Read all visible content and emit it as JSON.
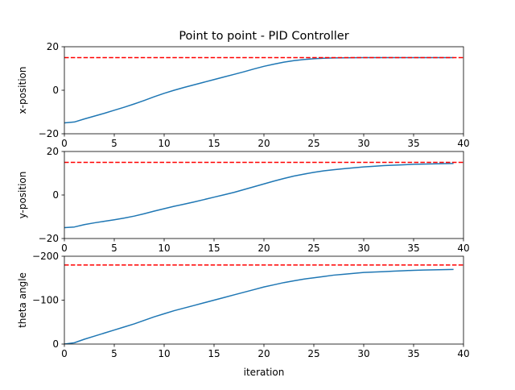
{
  "chart_data": [
    {
      "type": "line",
      "title": "Point to point - PID Controller",
      "xlabel": "",
      "ylabel": "x-position",
      "xlim": [
        0,
        40
      ],
      "ylim": [
        -20,
        20
      ],
      "xticks": [
        0,
        5,
        10,
        15,
        20,
        25,
        30,
        35,
        40
      ],
      "yticks": [
        -20,
        0,
        20
      ],
      "ytick_labels": [
        "−20",
        "0",
        "20"
      ],
      "grid": false,
      "series": [
        {
          "color": "#1f77b4",
          "style": "solid",
          "x": [
            0,
            1,
            2,
            3,
            4,
            5,
            6,
            7,
            8,
            9,
            10,
            11,
            12,
            13,
            14,
            15,
            16,
            17,
            18,
            19,
            20,
            21,
            22,
            23,
            24,
            25,
            26,
            27,
            28,
            29,
            30,
            31,
            32,
            33,
            34,
            35,
            36,
            37,
            38,
            39
          ],
          "y": [
            -15,
            -14.6,
            -13.2,
            -11.9,
            -10.6,
            -9.2,
            -7.8,
            -6.3,
            -4.7,
            -3.0,
            -1.4,
            0.0,
            1.3,
            2.5,
            3.7,
            4.9,
            6.1,
            7.3,
            8.5,
            9.8,
            11.0,
            12.0,
            12.9,
            13.6,
            14.1,
            14.5,
            14.7,
            14.85,
            14.92,
            14.96,
            14.98,
            14.99,
            15.0,
            15.0,
            15.0,
            15.0,
            15.0,
            15.0,
            15.0,
            15.0
          ]
        },
        {
          "color": "#ff0000",
          "style": "dashed",
          "x": [
            0,
            40
          ],
          "y": [
            15,
            15
          ]
        }
      ]
    },
    {
      "type": "line",
      "title": "",
      "xlabel": "",
      "ylabel": "y-position",
      "xlim": [
        0,
        40
      ],
      "ylim": [
        -20,
        20
      ],
      "xticks": [
        0,
        5,
        10,
        15,
        20,
        25,
        30,
        35,
        40
      ],
      "yticks": [
        -20,
        0,
        20
      ],
      "ytick_labels": [
        "−20",
        "0",
        "20"
      ],
      "grid": false,
      "series": [
        {
          "color": "#1f77b4",
          "style": "solid",
          "x": [
            0,
            1,
            2,
            3,
            4,
            5,
            6,
            7,
            8,
            9,
            10,
            11,
            12,
            13,
            14,
            15,
            16,
            17,
            18,
            19,
            20,
            21,
            22,
            23,
            24,
            25,
            26,
            27,
            28,
            29,
            30,
            31,
            32,
            33,
            34,
            35,
            36,
            37,
            38,
            39
          ],
          "y": [
            -15,
            -14.7,
            -13.6,
            -12.8,
            -12.1,
            -11.4,
            -10.6,
            -9.7,
            -8.6,
            -7.4,
            -6.3,
            -5.2,
            -4.2,
            -3.2,
            -2.1,
            -1.0,
            0.1,
            1.2,
            2.5,
            3.8,
            5.1,
            6.4,
            7.6,
            8.7,
            9.6,
            10.4,
            11.1,
            11.6,
            12.1,
            12.5,
            12.9,
            13.2,
            13.5,
            13.7,
            13.9,
            14.1,
            14.2,
            14.3,
            14.4,
            14.5
          ]
        },
        {
          "color": "#ff0000",
          "style": "dashed",
          "x": [
            0,
            40
          ],
          "y": [
            15,
            15
          ]
        }
      ]
    },
    {
      "type": "line",
      "title": "",
      "xlabel": "iteration",
      "ylabel": "theta angle",
      "xlim": [
        0,
        40
      ],
      "ylim": [
        0,
        -200
      ],
      "xticks": [
        0,
        5,
        10,
        15,
        20,
        25,
        30,
        35,
        40
      ],
      "yticks": [
        0,
        -100,
        -200
      ],
      "ytick_labels": [
        "0",
        "−100",
        "−200"
      ],
      "grid": false,
      "series": [
        {
          "color": "#1f77b4",
          "style": "solid",
          "x": [
            0,
            1,
            2,
            3,
            4,
            5,
            6,
            7,
            8,
            9,
            10,
            11,
            12,
            13,
            14,
            15,
            16,
            17,
            18,
            19,
            20,
            21,
            22,
            23,
            24,
            25,
            26,
            27,
            28,
            29,
            30,
            31,
            32,
            33,
            34,
            35,
            36,
            37,
            38,
            39
          ],
          "y": [
            0,
            -3,
            -11,
            -18,
            -25,
            -32,
            -39,
            -46,
            -54,
            -62,
            -69,
            -76,
            -82,
            -88,
            -94,
            -100,
            -106,
            -112,
            -118,
            -124,
            -130,
            -135,
            -140,
            -144,
            -148,
            -151,
            -154,
            -157,
            -159,
            -161,
            -163,
            -164,
            -165,
            -166,
            -167,
            -168,
            -168.5,
            -169,
            -169.5,
            -170
          ]
        },
        {
          "color": "#ff0000",
          "style": "dashed",
          "x": [
            0,
            40
          ],
          "y": [
            -180,
            -180
          ]
        }
      ]
    }
  ]
}
